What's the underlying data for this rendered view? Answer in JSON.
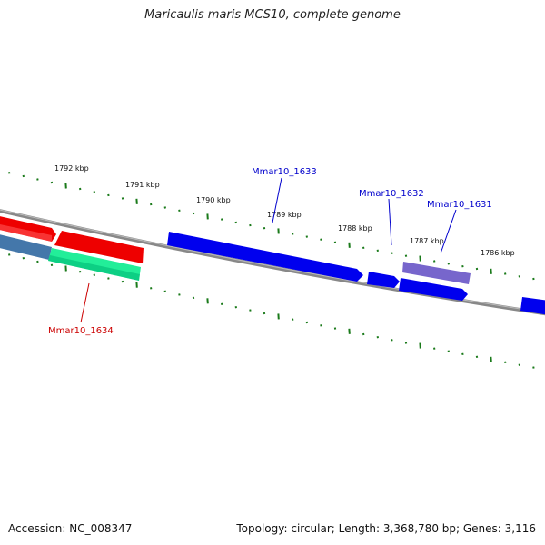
{
  "title": "Maricaulis maris MCS10, complete genome",
  "footer": {
    "accession": "Accession: NC_008347",
    "summary": "Topology: circular; Length: 3,368,780 bp; Genes: 3,116"
  },
  "kbp_labels": [
    "1792 kbp",
    "1791 kbp",
    "1790 kbp",
    "1789 kbp",
    "1788 kbp",
    "1787 kbp",
    "1786 kbp"
  ],
  "genes": [
    {
      "label": "Mmar10_1633",
      "color": "#0000cc"
    },
    {
      "label": "Mmar10_1632",
      "color": "#0000cc"
    },
    {
      "label": "Mmar10_1631",
      "color": "#0000cc"
    },
    {
      "label": "Mmar10_1634",
      "color": "#cc0000"
    }
  ],
  "colors": {
    "ticks": "#1a7a1a",
    "backbone": "#777777",
    "forward_feature": "#0000ee",
    "reverse_feature": "#ee0000",
    "rna_feature": "#22ee99",
    "misc_feature": "#4477aa",
    "pseudo_feature": "#7766cc"
  }
}
